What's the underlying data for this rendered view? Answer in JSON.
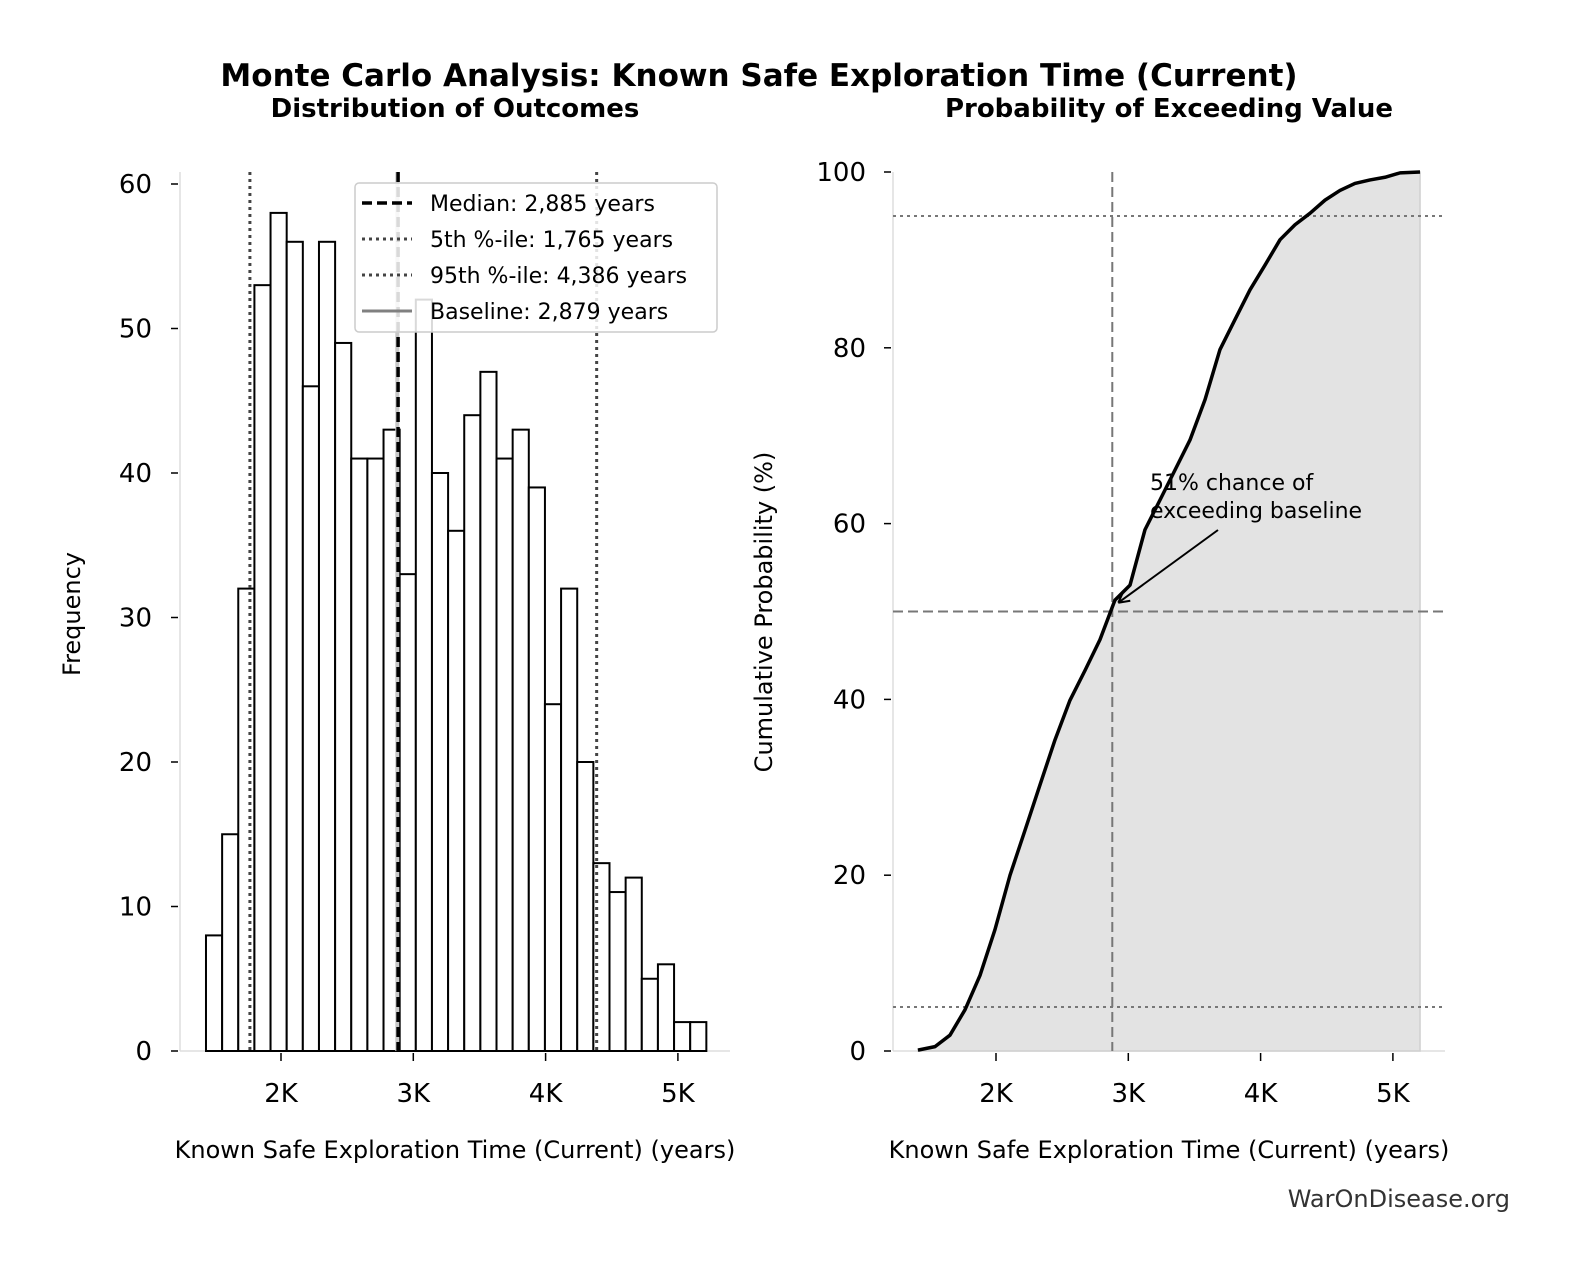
{
  "title": "Monte Carlo Analysis: Known Safe Exploration Time (Current)",
  "watermark": "WarOnDisease.org",
  "chart_data": [
    {
      "type": "bar",
      "subtitle": "Distribution of Outcomes",
      "xlabel": "Known Safe Exploration Time (Current) (years)",
      "ylabel": "Frequency",
      "xticks": [
        2000,
        3000,
        4000,
        5000
      ],
      "xtick_labels": [
        "2K",
        "3K",
        "4K",
        "5K"
      ],
      "yticks": [
        0,
        10,
        20,
        30,
        40,
        50,
        60
      ],
      "ylim": [
        0,
        61
      ],
      "bin_start": 1433,
      "bin_width": 122,
      "values": [
        8,
        15,
        32,
        53,
        58,
        56,
        46,
        56,
        49,
        41,
        41,
        43,
        33,
        52,
        40,
        36,
        44,
        47,
        41,
        43,
        39,
        24,
        32,
        20,
        13,
        11,
        12,
        5,
        6,
        2,
        2
      ],
      "reference_lines": [
        {
          "name": "Median: 2,885 years",
          "value": 2885,
          "style": "dashed",
          "color": "#000000"
        },
        {
          "name": "5th %-ile: 1,765 years",
          "value": 1765,
          "style": "dotted",
          "color": "#444444"
        },
        {
          "name": "95th %-ile: 4,386 years",
          "value": 4386,
          "style": "dotted",
          "color": "#444444"
        },
        {
          "name": "Baseline: 2,879 years",
          "value": 2879,
          "style": "solid",
          "color": "#808080"
        }
      ],
      "legend_position": "top-right",
      "grid": false
    },
    {
      "type": "area",
      "subtitle": "Probability of Exceeding Value",
      "xlabel": "Known Safe Exploration Time (Current) (years)",
      "ylabel": "Cumulative Probability (%)",
      "xticks": [
        2000,
        3000,
        4000,
        5000
      ],
      "xtick_labels": [
        "2K",
        "3K",
        "4K",
        "5K"
      ],
      "yticks": [
        0,
        20,
        40,
        60,
        80,
        100
      ],
      "ylim": [
        0,
        100
      ],
      "x": [
        1410,
        1539,
        1652,
        1766,
        1879,
        1992,
        2106,
        2219,
        2333,
        2446,
        2559,
        2673,
        2786,
        2899,
        3013,
        3126,
        3240,
        3353,
        3466,
        3580,
        3693,
        3806,
        3920,
        4033,
        4147,
        4260,
        4373,
        4487,
        4600,
        4713,
        4827,
        4940,
        5054,
        5205
      ],
      "y": [
        0.1,
        0.5,
        1.8,
        4.7,
        8.6,
        13.8,
        20.0,
        25.1,
        30.3,
        35.4,
        39.9,
        43.3,
        46.8,
        51.3,
        53.0,
        59.3,
        62.7,
        66.1,
        69.5,
        74.1,
        79.8,
        83.2,
        86.6,
        89.4,
        92.3,
        94.0,
        95.3,
        96.8,
        97.9,
        98.7,
        99.1,
        99.4,
        99.9,
        100
      ],
      "fill_color": "#e3e3e3",
      "line_color": "#000000",
      "hlines": [
        {
          "value": 95,
          "style": "dotted"
        },
        {
          "value": 50,
          "style": "dashed"
        },
        {
          "value": 5,
          "style": "dotted"
        }
      ],
      "vline": {
        "value": 2879,
        "style": "dashed"
      },
      "annotation": {
        "lines": [
          "51% chance of",
          "exceeding baseline"
        ],
        "point": [
          2879,
          51
        ]
      },
      "grid": false
    }
  ]
}
